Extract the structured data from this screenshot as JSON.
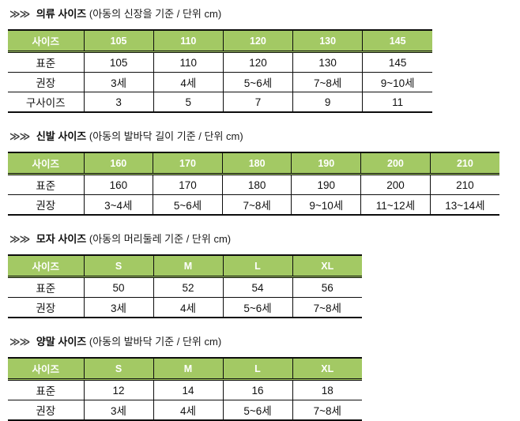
{
  "colors": {
    "table_header_bg": "#A3C964",
    "table_header_text": "#FFFFFF",
    "table_border": "#0D0D0D",
    "page_bg": "#FFFFFF"
  },
  "sections": [
    {
      "chevrons": "≫≫",
      "title": "의류 사이즈",
      "note": "(아동의 신장을 기준 / 단위 cm)",
      "table": {
        "header": [
          "사이즈",
          "105",
          "110",
          "120",
          "130",
          "145"
        ],
        "rows": [
          [
            "표준",
            "105",
            "110",
            "120",
            "130",
            "145"
          ],
          [
            "권장",
            "3세",
            "4세",
            "5~6세",
            "7~8세",
            "9~10세"
          ],
          [
            "구사이즈",
            "3",
            "5",
            "7",
            "9",
            "11"
          ]
        ]
      }
    },
    {
      "chevrons": "≫≫",
      "title": "신발 사이즈",
      "note": "(아동의 발바닥 길이 기준 / 단위 cm)",
      "table": {
        "header": [
          "사이즈",
          "160",
          "170",
          "180",
          "190",
          "200",
          "210"
        ],
        "rows": [
          [
            "표준",
            "160",
            "170",
            "180",
            "190",
            "200",
            "210"
          ],
          [
            "권장",
            "3~4세",
            "5~6세",
            "7~8세",
            "9~10세",
            "11~12세",
            "13~14세"
          ]
        ]
      }
    },
    {
      "chevrons": "≫≫",
      "title": "모자 사이즈",
      "note": "(아동의 머리둘레 기준 / 단위 cm)",
      "table": {
        "header": [
          "사이즈",
          "S",
          "M",
          "L",
          "XL"
        ],
        "rows": [
          [
            "표준",
            "50",
            "52",
            "54",
            "56"
          ],
          [
            "권장",
            "3세",
            "4세",
            "5~6세",
            "7~8세"
          ]
        ]
      }
    },
    {
      "chevrons": "≫≫",
      "title": "양말 사이즈",
      "note": "(아동의 발바닥 기준 / 단위 cm)",
      "table": {
        "header": [
          "사이즈",
          "S",
          "M",
          "L",
          "XL"
        ],
        "rows": [
          [
            "표준",
            "12",
            "14",
            "16",
            "18"
          ],
          [
            "권장",
            "3세",
            "4세",
            "5~6세",
            "7~8세"
          ]
        ]
      }
    }
  ]
}
